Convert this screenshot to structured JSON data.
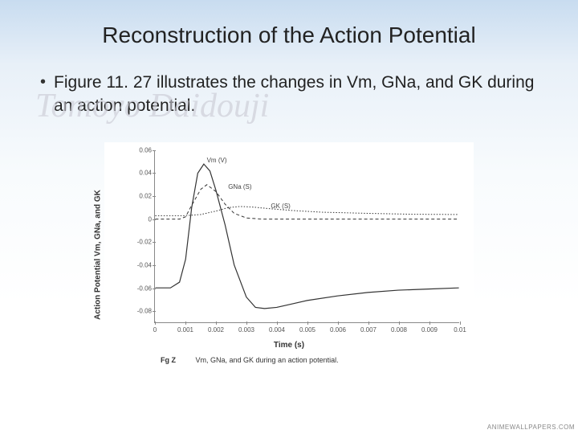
{
  "slide": {
    "title": "Reconstruction of the Action Potential",
    "bullet_text": "Figure 11. 27 illustrates the changes in Vm, GNa, and GK during an action potential.",
    "watermark_text": "Tomoyo Daidouji",
    "site_watermark": "ANIMEWALLPAPERS.COM"
  },
  "chart": {
    "type": "line",
    "y_axis_label": "Action Potential Vm, GNa, and GK",
    "x_axis_label": "Time (s)",
    "caption_fig": "Fg Z",
    "caption_text": "Vm, GNa, and GK during an action potential.",
    "xlim": [
      0,
      0.01
    ],
    "ylim": [
      -0.09,
      0.06
    ],
    "xticks": [
      0,
      0.001,
      0.002,
      0.003,
      0.004,
      0.005,
      0.006,
      0.007,
      0.008,
      0.009,
      0.01
    ],
    "xtick_labels": [
      "0",
      "0.001",
      "0.002",
      "0.003",
      "0.004",
      "0.005",
      "0.006",
      "0.007",
      "0.008",
      "0.009",
      "0.01"
    ],
    "yticks": [
      -0.08,
      -0.06,
      -0.04,
      -0.02,
      0,
      0.02,
      0.04,
      0.06
    ],
    "ytick_labels": [
      "-0.08",
      "-0.06",
      "-0.04",
      "-0.02",
      "0",
      "0.02",
      "0.04",
      "0.06"
    ],
    "background_color": "#ffffff",
    "axis_color": "#888888",
    "tick_fontsize": 8,
    "label_fontsize": 10,
    "series": {
      "Vm": {
        "label": "Vm (V)",
        "label_pos": {
          "x": 0.0017,
          "y": 0.051
        },
        "color": "#333333",
        "style": "solid",
        "width": 1.2,
        "points": [
          [
            0,
            -0.06
          ],
          [
            0.0005,
            -0.06
          ],
          [
            0.0008,
            -0.055
          ],
          [
            0.001,
            -0.035
          ],
          [
            0.0012,
            0.01
          ],
          [
            0.0014,
            0.04
          ],
          [
            0.0016,
            0.048
          ],
          [
            0.0018,
            0.042
          ],
          [
            0.002,
            0.025
          ],
          [
            0.0023,
            -0.005
          ],
          [
            0.0026,
            -0.04
          ],
          [
            0.003,
            -0.068
          ],
          [
            0.0033,
            -0.077
          ],
          [
            0.0036,
            -0.078
          ],
          [
            0.004,
            -0.077
          ],
          [
            0.0045,
            -0.074
          ],
          [
            0.005,
            -0.071
          ],
          [
            0.006,
            -0.067
          ],
          [
            0.007,
            -0.064
          ],
          [
            0.008,
            -0.062
          ],
          [
            0.009,
            -0.061
          ],
          [
            0.01,
            -0.06
          ]
        ]
      },
      "GNa": {
        "label": "GNa (S)",
        "label_pos": {
          "x": 0.0024,
          "y": 0.028
        },
        "color": "#333333",
        "style": "dashed",
        "width": 1.0,
        "points": [
          [
            0,
            0
          ],
          [
            0.0008,
            0
          ],
          [
            0.001,
            0.002
          ],
          [
            0.0012,
            0.012
          ],
          [
            0.0015,
            0.026
          ],
          [
            0.0017,
            0.03
          ],
          [
            0.002,
            0.024
          ],
          [
            0.0023,
            0.013
          ],
          [
            0.0026,
            0.005
          ],
          [
            0.003,
            0.001
          ],
          [
            0.0035,
            0
          ],
          [
            0.005,
            0
          ],
          [
            0.007,
            0
          ],
          [
            0.01,
            0
          ]
        ]
      },
      "GK": {
        "label": "GK (S)",
        "label_pos": {
          "x": 0.0038,
          "y": 0.011
        },
        "color": "#333333",
        "style": "dotted",
        "width": 1.0,
        "points": [
          [
            0,
            0.003
          ],
          [
            0.001,
            0.003
          ],
          [
            0.0015,
            0.004
          ],
          [
            0.002,
            0.007
          ],
          [
            0.0024,
            0.01
          ],
          [
            0.0028,
            0.011
          ],
          [
            0.0032,
            0.0105
          ],
          [
            0.0038,
            0.009
          ],
          [
            0.0045,
            0.0075
          ],
          [
            0.0055,
            0.006
          ],
          [
            0.007,
            0.005
          ],
          [
            0.0085,
            0.0042
          ],
          [
            0.01,
            0.004
          ]
        ]
      }
    }
  }
}
